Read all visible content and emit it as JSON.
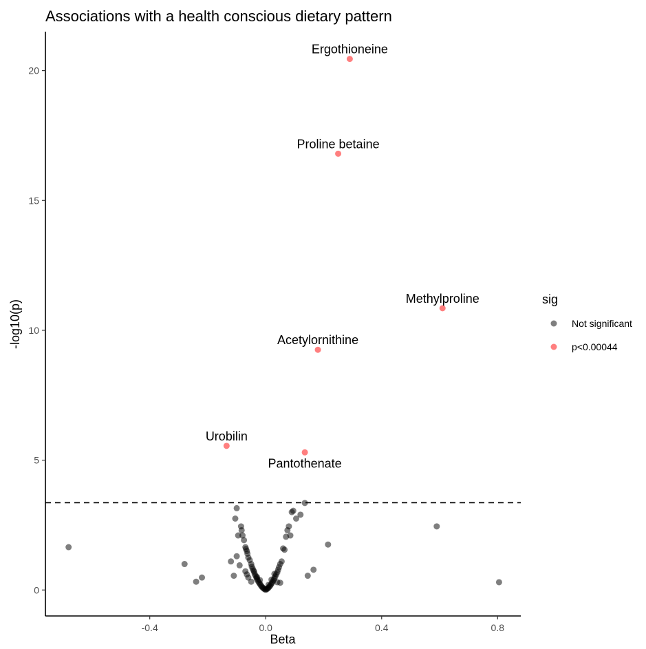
{
  "chart_data": {
    "type": "scatter",
    "title": "Associations with a health conscious dietary pattern",
    "xlabel": "Beta",
    "ylabel": "-log10(p)",
    "xlim": [
      -0.76,
      0.88
    ],
    "ylim": [
      -1.0,
      21.5
    ],
    "xticks": [
      -0.4,
      0.0,
      0.4,
      0.8
    ],
    "xtick_labels": [
      "-0.4",
      "0.0",
      "0.4",
      "0.8"
    ],
    "yticks": [
      0,
      5,
      10,
      15,
      20
    ],
    "ytick_labels": [
      "0",
      "5",
      "10",
      "15",
      "20"
    ],
    "threshold_line": {
      "y": 3.36,
      "style": "dashed"
    },
    "grid": false,
    "legend": {
      "title": "sig",
      "position": "right",
      "entries": [
        {
          "label": "Not significant",
          "color": "#000000"
        },
        {
          "label": "p<0.00044",
          "color": "#ff0000"
        }
      ]
    },
    "series": [
      {
        "name": "Not significant",
        "color": "#000000",
        "opacity": 0.5,
        "points": [
          [
            -0.68,
            1.65
          ],
          [
            -0.28,
            1.0
          ],
          [
            -0.24,
            0.32
          ],
          [
            -0.22,
            0.48
          ],
          [
            -0.12,
            1.1
          ],
          [
            -0.11,
            0.55
          ],
          [
            -0.105,
            2.75
          ],
          [
            -0.1,
            3.15
          ],
          [
            -0.1,
            1.3
          ],
          [
            -0.095,
            2.1
          ],
          [
            -0.09,
            0.95
          ],
          [
            -0.085,
            2.45
          ],
          [
            -0.083,
            2.3
          ],
          [
            -0.08,
            2.1
          ],
          [
            -0.075,
            1.92
          ],
          [
            -0.07,
            1.65
          ],
          [
            -0.068,
            1.58
          ],
          [
            -0.065,
            1.5
          ],
          [
            -0.063,
            1.4
          ],
          [
            -0.06,
            1.25
          ],
          [
            -0.055,
            1.15
          ],
          [
            -0.05,
            1.0
          ],
          [
            -0.048,
            0.9
          ],
          [
            -0.045,
            0.82
          ],
          [
            -0.042,
            0.75
          ],
          [
            -0.04,
            0.7
          ],
          [
            -0.038,
            0.62
          ],
          [
            -0.035,
            0.55
          ],
          [
            -0.032,
            0.48
          ],
          [
            -0.03,
            0.42
          ],
          [
            -0.027,
            0.36
          ],
          [
            -0.024,
            0.3
          ],
          [
            -0.021,
            0.25
          ],
          [
            -0.018,
            0.2
          ],
          [
            -0.015,
            0.15
          ],
          [
            -0.012,
            0.11
          ],
          [
            -0.009,
            0.08
          ],
          [
            -0.006,
            0.05
          ],
          [
            -0.003,
            0.03
          ],
          [
            0.0,
            0.01
          ],
          [
            0.003,
            0.03
          ],
          [
            0.006,
            0.05
          ],
          [
            0.009,
            0.08
          ],
          [
            0.012,
            0.12
          ],
          [
            0.015,
            0.16
          ],
          [
            0.018,
            0.21
          ],
          [
            0.021,
            0.26
          ],
          [
            0.024,
            0.32
          ],
          [
            0.027,
            0.38
          ],
          [
            0.03,
            0.45
          ],
          [
            0.033,
            0.52
          ],
          [
            0.036,
            0.6
          ],
          [
            0.04,
            0.68
          ],
          [
            0.043,
            0.78
          ],
          [
            0.046,
            0.88
          ],
          [
            0.05,
            1.0
          ],
          [
            0.055,
            1.1
          ],
          [
            -0.07,
            0.72
          ],
          [
            -0.065,
            0.6
          ],
          [
            -0.05,
            0.32
          ],
          [
            -0.06,
            0.48
          ],
          [
            0.04,
            0.3
          ],
          [
            0.05,
            0.28
          ],
          [
            0.03,
            0.62
          ],
          [
            0.06,
            1.6
          ],
          [
            0.065,
            1.55
          ],
          [
            0.07,
            2.05
          ],
          [
            0.075,
            2.3
          ],
          [
            0.08,
            2.45
          ],
          [
            0.085,
            2.1
          ],
          [
            0.09,
            3.0
          ],
          [
            0.095,
            3.05
          ],
          [
            0.105,
            2.75
          ],
          [
            0.12,
            2.9
          ],
          [
            0.135,
            3.35
          ],
          [
            0.145,
            0.55
          ],
          [
            0.165,
            0.78
          ],
          [
            0.215,
            1.75
          ],
          [
            0.59,
            2.45
          ],
          [
            0.805,
            0.3
          ],
          [
            -0.03,
            0.5
          ],
          [
            -0.02,
            0.38
          ],
          [
            0.02,
            0.4
          ],
          [
            0.01,
            0.2
          ]
        ]
      },
      {
        "name": "p<0.00044",
        "color": "#ff0000",
        "opacity": 0.5,
        "points": [
          {
            "x": 0.29,
            "y": 20.45,
            "label": "Ergothioneine",
            "label_pos": "above"
          },
          {
            "x": 0.25,
            "y": 16.8,
            "label": "Proline betaine",
            "label_pos": "above"
          },
          {
            "x": 0.61,
            "y": 10.85,
            "label": "Methylproline",
            "label_pos": "above"
          },
          {
            "x": 0.18,
            "y": 9.25,
            "label": "Acetylornithine",
            "label_pos": "above"
          },
          {
            "x": -0.135,
            "y": 5.55,
            "label": "Urobilin",
            "label_pos": "above"
          },
          {
            "x": 0.135,
            "y": 5.3,
            "label": "Pantothenate",
            "label_pos": "below"
          }
        ]
      }
    ]
  }
}
